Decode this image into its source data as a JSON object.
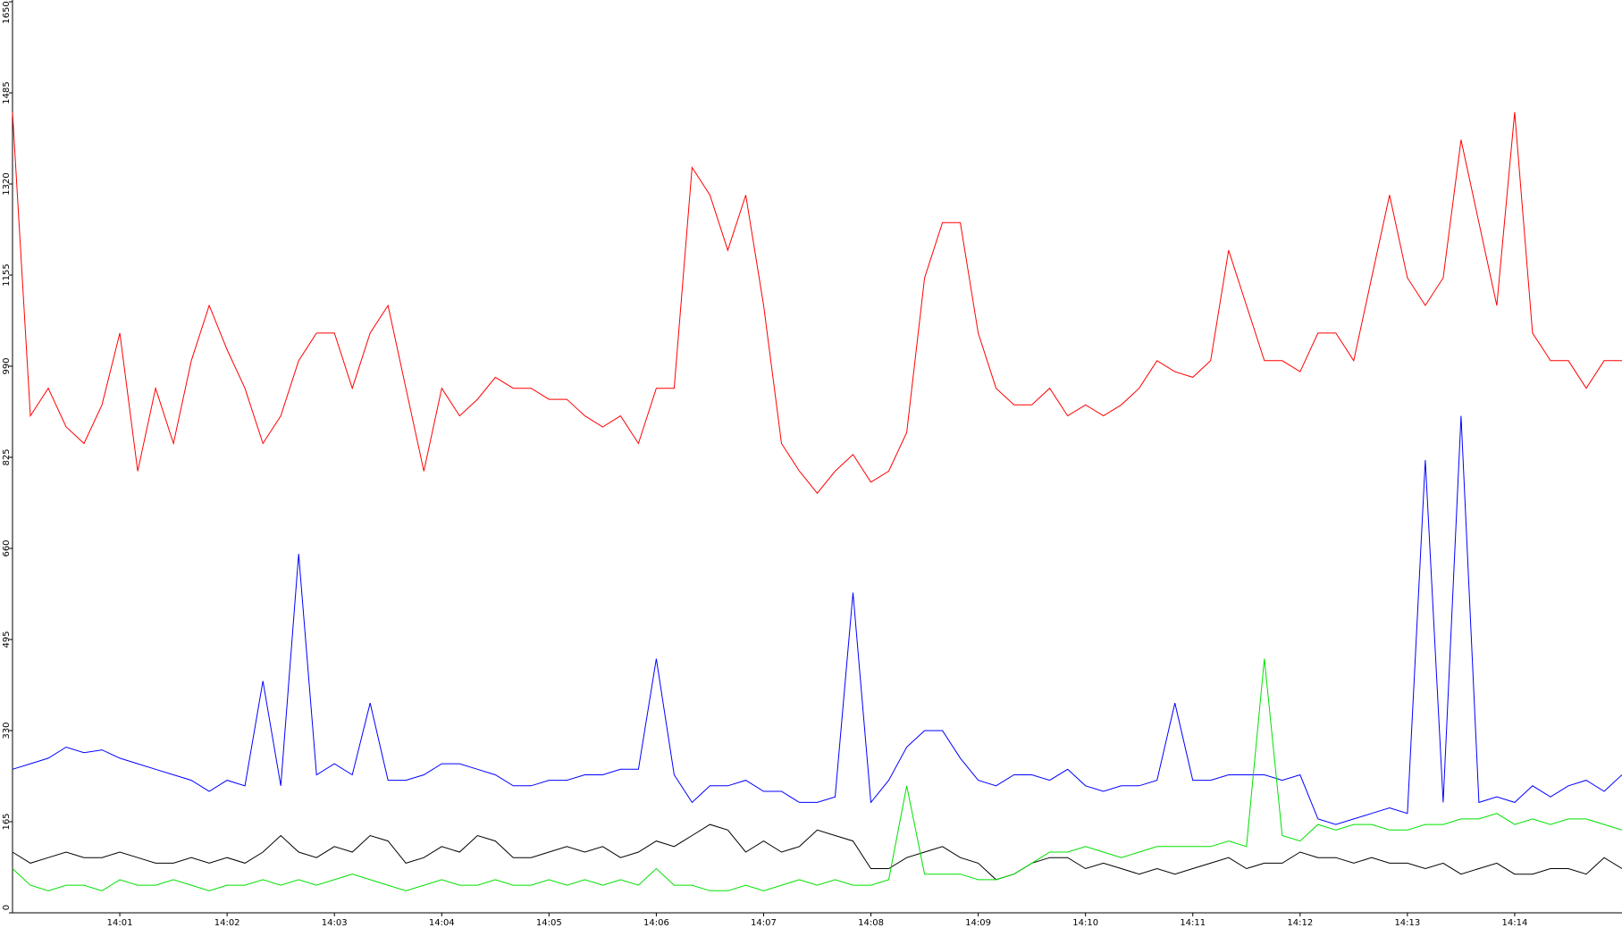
{
  "chart_data": {
    "type": "line",
    "categories": [
      null,
      null,
      null,
      null,
      null,
      null,
      "14:01",
      null,
      null,
      null,
      null,
      null,
      "14:02",
      null,
      null,
      null,
      null,
      null,
      "14:03",
      null,
      null,
      null,
      null,
      null,
      "14:04",
      null,
      null,
      null,
      null,
      null,
      "14:05",
      null,
      null,
      null,
      null,
      null,
      "14:06",
      null,
      null,
      null,
      null,
      null,
      "14:07",
      null,
      null,
      null,
      null,
      null,
      "14:08",
      null,
      null,
      null,
      null,
      null,
      "14:09",
      null,
      null,
      null,
      null,
      null,
      "14:10",
      null,
      null,
      null,
      null,
      null,
      "14:11",
      null,
      null,
      null,
      null,
      null,
      "14:12",
      null,
      null,
      null,
      null,
      null,
      "14:13",
      null,
      null,
      null,
      null,
      null,
      "14:14",
      null,
      null,
      null,
      null,
      null,
      null
    ],
    "ylim": [
      0,
      1650
    ],
    "yticks": [
      0,
      165,
      330,
      495,
      660,
      825,
      990,
      1155,
      1320,
      1485,
      1650
    ],
    "series": [
      {
        "color": "#ff0000",
        "values": [
          1450,
          900,
          950,
          880,
          850,
          920,
          1050,
          800,
          950,
          850,
          1000,
          1100,
          1020,
          950,
          850,
          900,
          1000,
          1050,
          1050,
          950,
          1050,
          1100,
          950,
          800,
          950,
          900,
          930,
          970,
          950,
          950,
          930,
          930,
          900,
          880,
          900,
          850,
          950,
          950,
          1350,
          1300,
          1200,
          1300,
          1100,
          850,
          800,
          760,
          800,
          830,
          780,
          800,
          870,
          1150,
          1250,
          1250,
          1050,
          950,
          920,
          920,
          950,
          900,
          920,
          900,
          920,
          950,
          1000,
          980,
          970,
          1000,
          1200,
          1100,
          1000,
          1000,
          980,
          1050,
          1050,
          1000,
          1150,
          1300,
          1150,
          1100,
          1150,
          1400,
          1250,
          1100,
          1450,
          1050,
          1000,
          1000,
          950,
          1000,
          1000
        ]
      },
      {
        "color": "#0000ff",
        "values": [
          260,
          270,
          280,
          300,
          290,
          295,
          280,
          270,
          260,
          250,
          240,
          220,
          240,
          230,
          420,
          230,
          650,
          250,
          270,
          250,
          380,
          240,
          240,
          250,
          270,
          270,
          260,
          250,
          230,
          230,
          240,
          240,
          250,
          250,
          260,
          260,
          460,
          250,
          200,
          230,
          230,
          240,
          220,
          220,
          200,
          200,
          210,
          580,
          200,
          240,
          300,
          330,
          330,
          280,
          240,
          230,
          250,
          250,
          240,
          260,
          230,
          220,
          230,
          230,
          240,
          380,
          240,
          240,
          250,
          250,
          250,
          240,
          250,
          170,
          160,
          170,
          180,
          190,
          180,
          820,
          200,
          900,
          200,
          210,
          200,
          230,
          210,
          230,
          240,
          220,
          250
        ]
      },
      {
        "color": "#000000",
        "values": [
          110,
          90,
          100,
          110,
          100,
          100,
          110,
          100,
          90,
          90,
          100,
          90,
          100,
          90,
          110,
          140,
          110,
          100,
          120,
          110,
          140,
          130,
          90,
          100,
          120,
          110,
          140,
          130,
          100,
          100,
          110,
          120,
          110,
          120,
          100,
          110,
          130,
          120,
          140,
          160,
          150,
          110,
          130,
          110,
          120,
          150,
          140,
          130,
          80,
          80,
          100,
          110,
          120,
          100,
          90,
          60,
          70,
          90,
          100,
          100,
          80,
          90,
          80,
          70,
          80,
          70,
          80,
          90,
          100,
          80,
          90,
          90,
          110,
          100,
          100,
          90,
          100,
          90,
          90,
          80,
          90,
          70,
          80,
          90,
          70,
          70,
          80,
          80,
          70,
          100,
          80
        ]
      },
      {
        "color": "#00e000",
        "values": [
          80,
          50,
          40,
          50,
          50,
          40,
          60,
          50,
          50,
          60,
          50,
          40,
          50,
          50,
          60,
          50,
          60,
          50,
          60,
          70,
          60,
          50,
          40,
          50,
          60,
          50,
          50,
          60,
          50,
          50,
          60,
          50,
          60,
          50,
          60,
          50,
          80,
          50,
          50,
          40,
          40,
          50,
          40,
          50,
          60,
          50,
          60,
          50,
          50,
          60,
          230,
          70,
          70,
          70,
          60,
          60,
          70,
          90,
          110,
          110,
          120,
          110,
          100,
          110,
          120,
          120,
          120,
          120,
          130,
          120,
          460,
          140,
          130,
          160,
          150,
          160,
          160,
          150,
          150,
          160,
          160,
          170,
          170,
          180,
          160,
          170,
          160,
          170,
          170,
          160,
          150
        ]
      }
    ]
  }
}
